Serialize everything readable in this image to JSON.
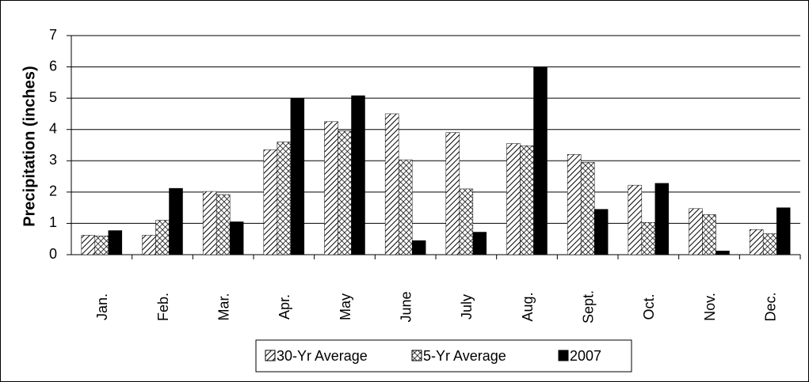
{
  "chart_data": {
    "type": "bar",
    "y_label": "Precipitation (inches)",
    "categories": [
      "Jan.",
      "Feb.",
      "Mar.",
      "Apr.",
      "May",
      "June",
      "July",
      "Aug.",
      "Sept.",
      "Oct.",
      "Nov.",
      "Dec."
    ],
    "series": [
      {
        "name": "30-Yr Average",
        "color": "#000000",
        "pattern": "diagonal",
        "values": [
          0.62,
          0.62,
          2.02,
          3.35,
          4.25,
          4.5,
          3.9,
          3.55,
          3.2,
          2.22,
          1.47,
          0.8
        ]
      },
      {
        "name": "5-Yr Average",
        "color": "#000000",
        "pattern": "crosshatch",
        "values": [
          0.6,
          1.1,
          1.92,
          3.6,
          3.95,
          3.03,
          2.1,
          3.48,
          2.95,
          1.03,
          1.28,
          0.67
        ]
      },
      {
        "name": "2007",
        "color": "#000000",
        "pattern": "solid",
        "values": [
          0.77,
          2.12,
          1.05,
          5.0,
          5.08,
          0.45,
          0.72,
          6.0,
          1.45,
          2.28,
          0.12,
          1.5
        ]
      }
    ],
    "ylim": [
      0,
      7
    ],
    "yticks": [
      0,
      1,
      2,
      3,
      4,
      5,
      6,
      7
    ],
    "grid": true,
    "legend": "bottom"
  }
}
